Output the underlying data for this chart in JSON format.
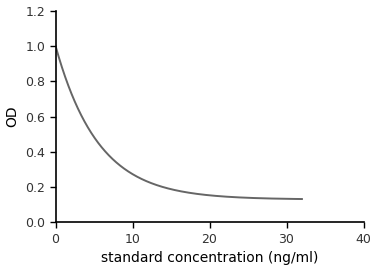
{
  "xlabel": "standard concentration (ng/ml)",
  "ylabel": "OD",
  "xlim": [
    0,
    40
  ],
  "ylim": [
    0,
    1.2
  ],
  "xticks": [
    0,
    10,
    20,
    30,
    40
  ],
  "yticks": [
    0,
    0.2,
    0.4,
    0.6,
    0.8,
    1.0,
    1.2
  ],
  "line_color": "#666666",
  "line_width": 1.4,
  "curve_end_x": 32,
  "curve_a": 0.13,
  "curve_b": 0.87,
  "curve_c": 0.18,
  "background_color": "#ffffff",
  "spine_color": "#000000",
  "tick_label_fontsize": 9,
  "axis_label_fontsize": 10
}
